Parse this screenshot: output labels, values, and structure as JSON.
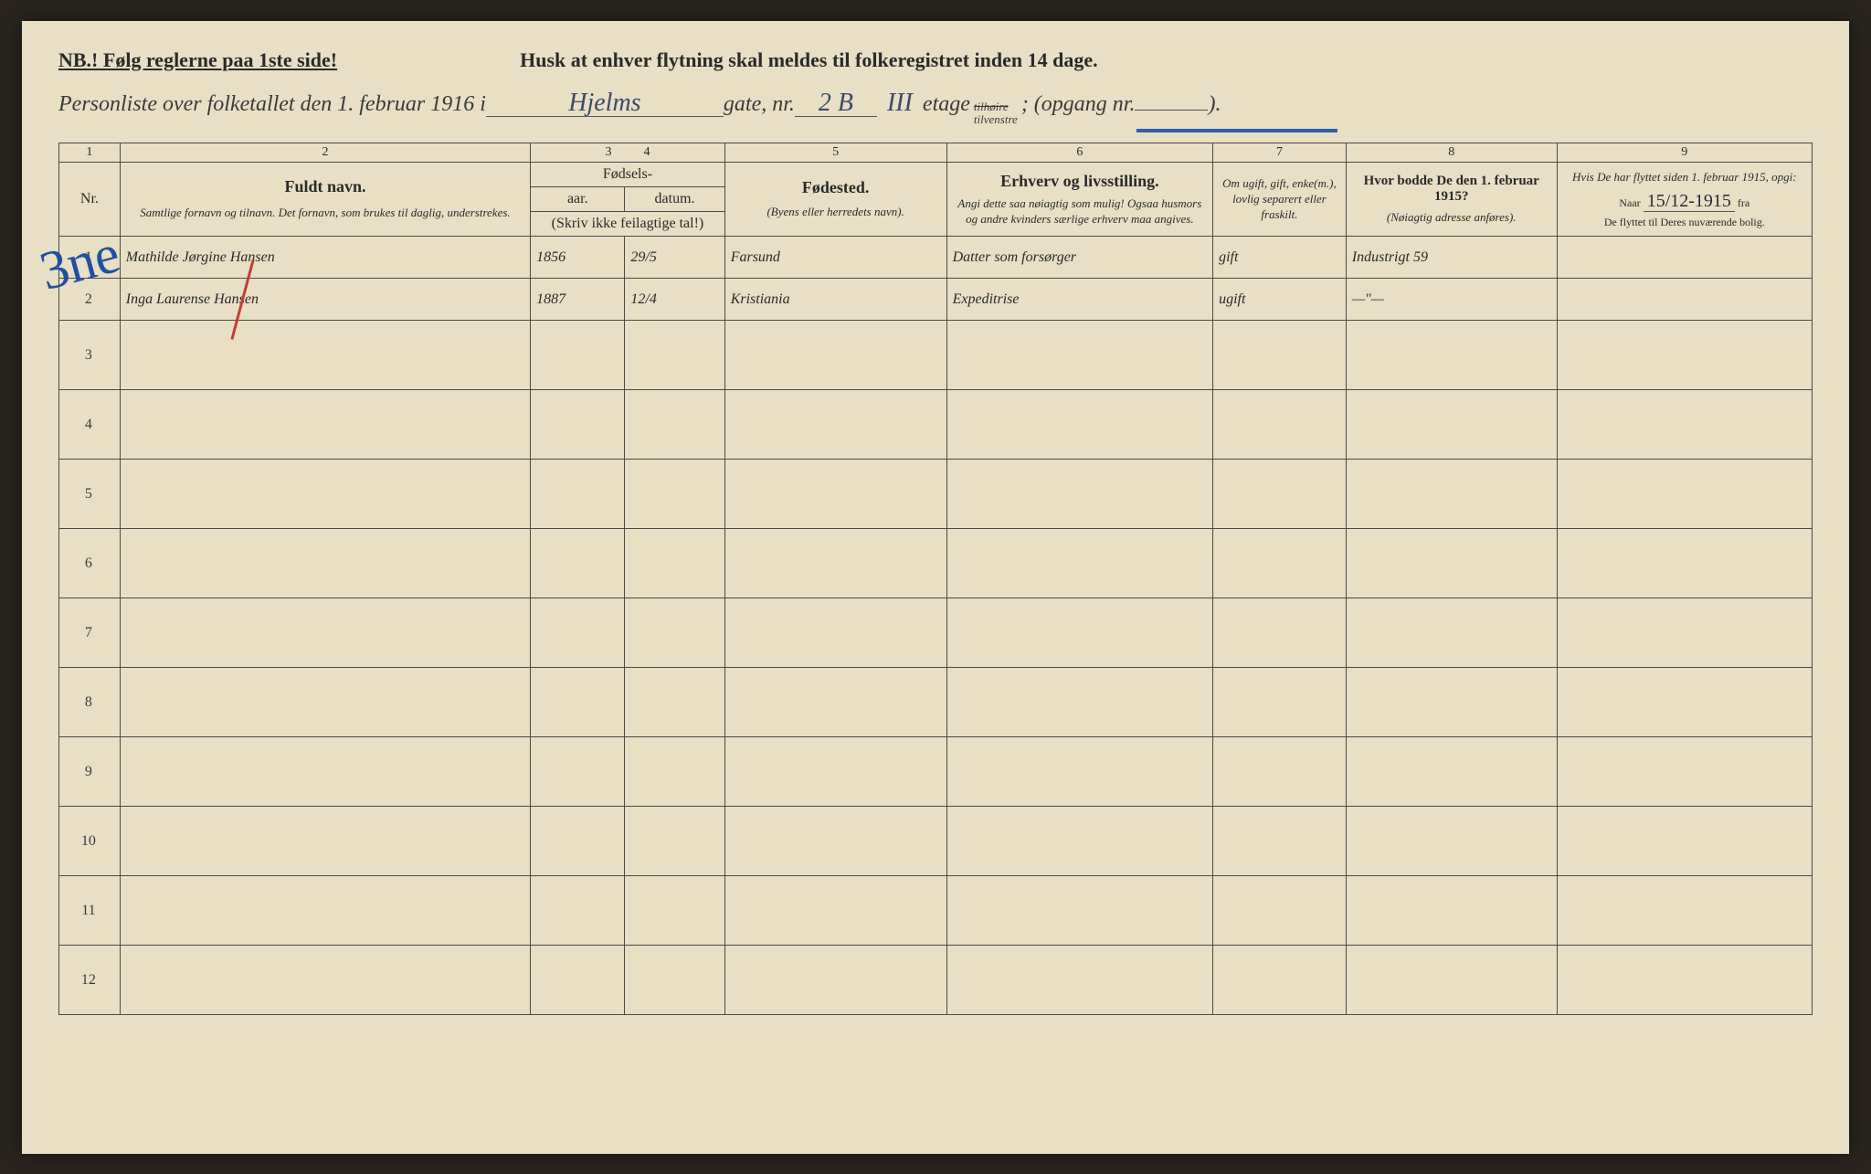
{
  "header": {
    "nb": "NB.! Følg reglerne paa 1ste side!",
    "husk": "Husk at enhver flytning skal meldes til folkeregistret inden 14 dage.",
    "personliste_prefix": "Personliste over folketallet den 1. februar 1916 i",
    "street": "Hjelms",
    "gate_label": "gate, nr.",
    "house_nr": "2 B",
    "etage_val": "III",
    "etage_label": "etage",
    "side_top": "tilhøire",
    "side_bottom": "tilvenstre",
    "opgang_label": "; (opgang nr.",
    "opgang_nr": "",
    "closing": ")."
  },
  "colnums": [
    "1",
    "2",
    "3",
    "4",
    "5",
    "6",
    "7",
    "8",
    "9"
  ],
  "columns": {
    "nr": "Nr.",
    "name_main": "Fuldt navn.",
    "name_sub": "Samtlige fornavn og tilnavn. Det fornavn, som brukes til daglig, understrekes.",
    "fodsels": "Fødsels-",
    "year": "aar.",
    "date": "datum.",
    "year_sub": "(Skriv ikke feilagtige tal!)",
    "place_main": "Fødested.",
    "place_sub": "(Byens eller herredets navn).",
    "occ_main": "Erhverv og livsstilling.",
    "occ_sub": "Angi dette saa nøiagtig som mulig! Ogsaa husmors og andre kvinders særlige erhverv maa angives.",
    "status_main": "Om ugift, gift, enke(m.), lovlig separert eller fraskilt.",
    "prev_main": "Hvor bodde De den 1. februar 1915?",
    "prev_sub": "(Nøiagtig adresse anføres).",
    "moved_main": "Hvis De har flyttet siden 1. februar 1915, opgi:",
    "moved_naar": "Naar",
    "moved_date_val": "15/12-1915",
    "moved_fra": "fra",
    "moved_sub": "De flyttet til Deres nuværende bolig."
  },
  "rows": [
    {
      "nr": "1",
      "name": "Mathilde Jørgine Hansen",
      "year": "1856",
      "date": "29/5",
      "place": "Farsund",
      "occ": "Datter som forsørger",
      "status": "gift",
      "prev": "Industrigt 59",
      "moved": ""
    },
    {
      "nr": "2",
      "name": "Inga Laurense Hansen",
      "year": "1887",
      "date": "12/4",
      "place": "Kristiania",
      "occ": "Expeditrise",
      "status": "ugift",
      "prev": "—\"—",
      "moved": ""
    }
  ],
  "empty_rows": [
    "3",
    "4",
    "5",
    "6",
    "7",
    "8",
    "9",
    "10",
    "11",
    "12"
  ],
  "scribble": "3ne"
}
